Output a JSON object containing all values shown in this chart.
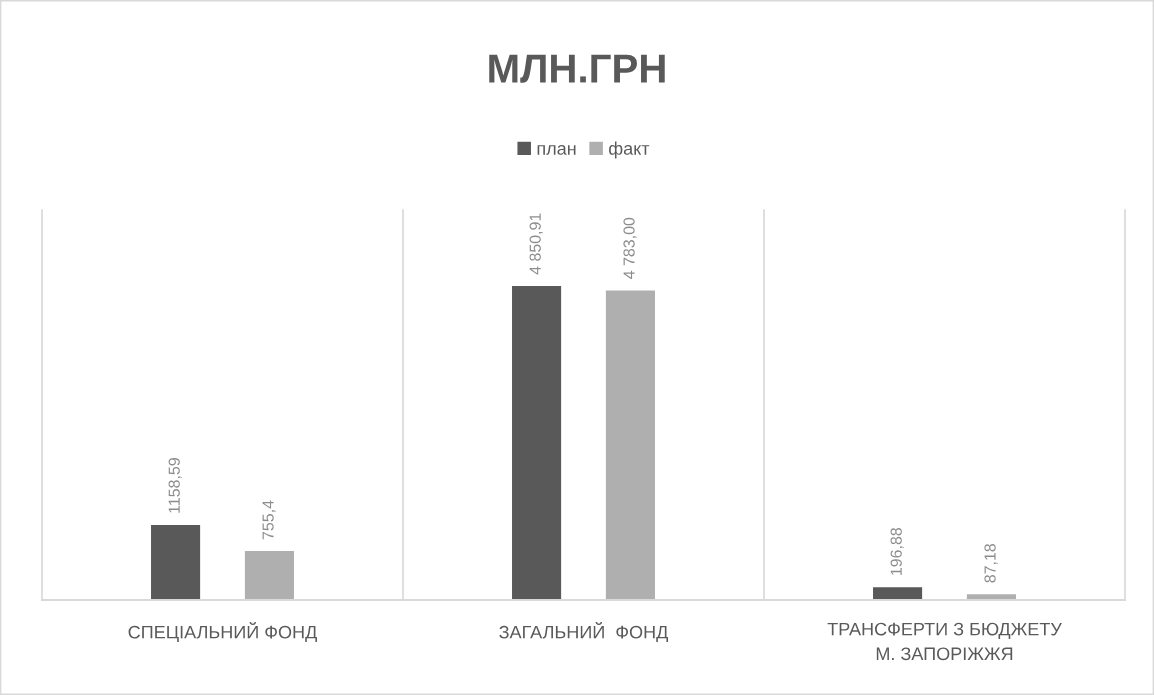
{
  "chart_data": {
    "type": "bar",
    "title": "МЛН.ГРН",
    "categories": [
      "СПЕЦІАЛЬНИЙ ФОНД",
      "ЗАГАЛЬНИЙ  ФОНД",
      "ТРАНСФЕРТИ З БЮДЖЕТУ\nМ. ЗАПОРІЖЖЯ"
    ],
    "series": [
      {
        "name": "план",
        "color": "#595959",
        "values": [
          1158.59,
          4850.91,
          196.88
        ],
        "value_labels": [
          "1158,59",
          "4 850,91",
          "196,88"
        ]
      },
      {
        "name": "факт",
        "color": "#afafaf",
        "values": [
          755.4,
          4783.0,
          87.18
        ],
        "value_labels": [
          "755,4",
          "4 783,00",
          "87,18"
        ]
      }
    ],
    "legend": "top",
    "grid": "x",
    "tick_labels": "x"
  }
}
